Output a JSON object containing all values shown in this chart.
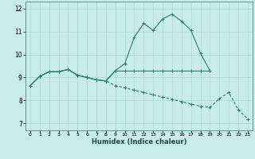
{
  "xlabel": "Humidex (Indice chaleur)",
  "bg_color": "#c8ecea",
  "grid_color": "#a8d8d4",
  "line_color": "#2e7d72",
  "xlim": [
    -0.5,
    23.5
  ],
  "ylim": [
    6.7,
    12.3
  ],
  "xticks": [
    0,
    1,
    2,
    3,
    4,
    5,
    6,
    7,
    8,
    9,
    10,
    11,
    12,
    13,
    14,
    15,
    16,
    17,
    18,
    19,
    20,
    21,
    22,
    23
  ],
  "yticks": [
    7,
    8,
    9,
    10,
    11,
    12
  ],
  "line1_x": [
    0,
    1,
    2,
    3,
    4,
    5,
    6,
    7,
    8,
    9,
    10,
    11,
    12,
    13,
    14,
    15,
    16,
    17,
    18,
    19
  ],
  "line1_y": [
    8.65,
    9.05,
    9.25,
    9.25,
    9.35,
    9.1,
    9.0,
    8.9,
    8.85,
    9.3,
    9.6,
    10.75,
    11.35,
    11.05,
    11.55,
    11.75,
    11.45,
    11.05,
    10.05,
    9.3
  ],
  "line2_x": [
    0,
    1,
    2,
    3,
    4,
    5,
    6,
    7,
    8,
    9,
    10,
    11,
    12,
    13,
    14,
    15,
    16,
    17,
    18,
    19
  ],
  "line2_y": [
    8.65,
    9.05,
    9.25,
    9.25,
    9.35,
    9.1,
    9.0,
    8.9,
    8.85,
    9.28,
    9.28,
    9.28,
    9.28,
    9.28,
    9.28,
    9.28,
    9.28,
    9.28,
    9.28,
    9.28
  ],
  "line3_x": [
    0,
    1,
    2,
    3,
    4,
    5,
    6,
    7,
    8,
    9,
    10,
    11,
    12,
    13,
    14,
    15,
    16,
    17,
    18,
    19,
    20,
    21,
    22,
    23
  ],
  "line3_y": [
    8.65,
    9.05,
    9.25,
    9.25,
    9.35,
    9.1,
    9.0,
    8.9,
    8.85,
    8.65,
    8.55,
    8.45,
    8.35,
    8.25,
    8.15,
    8.05,
    7.95,
    7.85,
    7.75,
    7.7,
    8.08,
    8.35,
    7.6,
    7.2
  ]
}
